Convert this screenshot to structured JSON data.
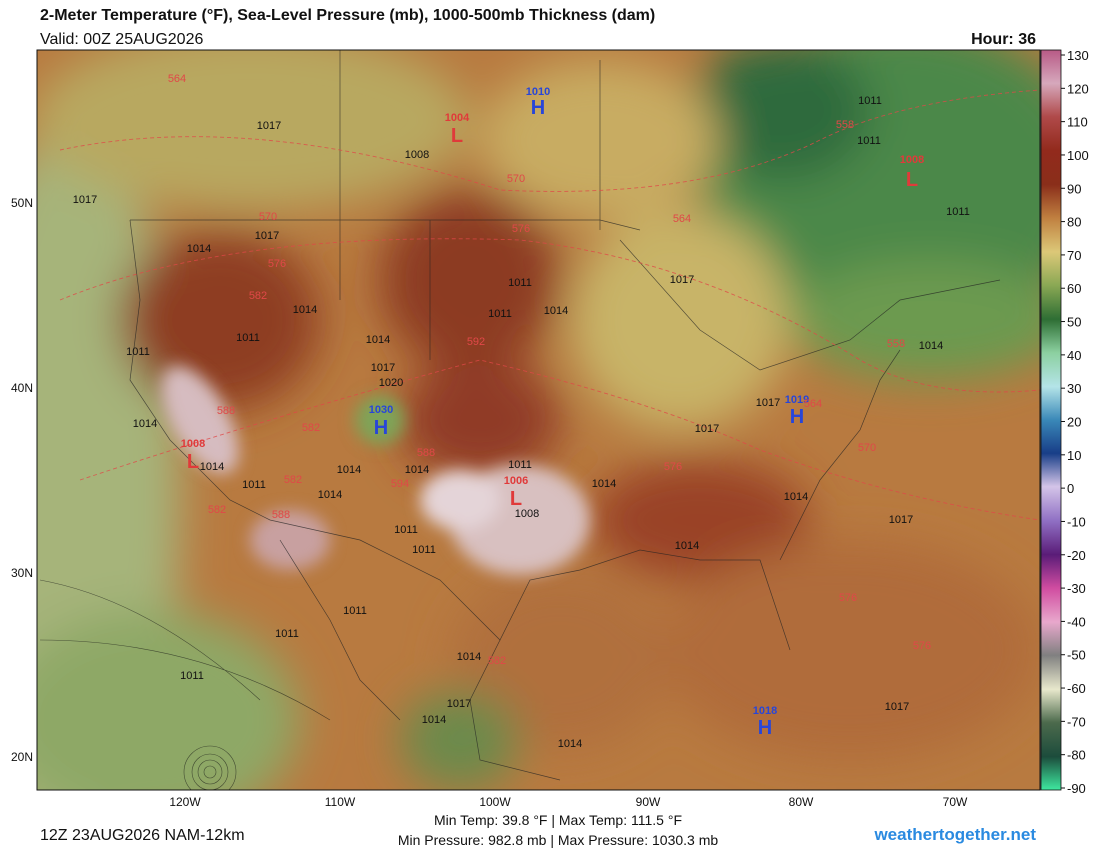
{
  "header": {
    "title": "2-Meter Temperature (°F), Sea-Level Pressure (mb), 1000-500mb Thickness (dam)",
    "valid": "Valid: 00Z 25AUG2026",
    "hour": "Hour: 36"
  },
  "colorbar": {
    "ticks": [
      130,
      120,
      110,
      100,
      90,
      80,
      70,
      60,
      50,
      40,
      30,
      20,
      10,
      0,
      -10,
      -20,
      -30,
      -40,
      -50,
      -60,
      -70,
      -80,
      -90
    ]
  },
  "latitude_labels": [
    "50N",
    "40N",
    "30N",
    "20N"
  ],
  "longitude_labels": [
    "120W",
    "110W",
    "100W",
    "90W",
    "80W",
    "70W"
  ],
  "pressure_centers": [
    {
      "symbol": "H",
      "value": 1010
    },
    {
      "symbol": "H",
      "value": 1030
    },
    {
      "symbol": "H",
      "value": 1019
    },
    {
      "symbol": "H",
      "value": 1018
    },
    {
      "symbol": "L",
      "value": 1004
    },
    {
      "symbol": "L",
      "value": 1008
    },
    {
      "symbol": "L",
      "value": 1008
    },
    {
      "symbol": "L",
      "value": 1006
    }
  ],
  "isobar_labels": [
    1017,
    1008,
    1011,
    1011,
    1011,
    1014,
    1017,
    1011,
    1011,
    1014,
    1014,
    1011,
    1011,
    1014,
    1017,
    1017,
    1020,
    1017,
    1017,
    1014,
    1014,
    1011,
    1014,
    1014,
    1014,
    1011,
    1008,
    1014,
    1014,
    1014,
    1017,
    1011,
    1011,
    1014,
    1011,
    1011,
    1011,
    1014,
    1014,
    1017,
    1014,
    1017,
    1017
  ],
  "thickness_labels": [
    564,
    570,
    558,
    576,
    564,
    570,
    576,
    582,
    592,
    558,
    564,
    570,
    576,
    588,
    582,
    588,
    594,
    582,
    588,
    582,
    576,
    576,
    582
  ],
  "footer": {
    "run": "12Z 23AUG2026 NAM-12km",
    "temperature_range": "Min Temp:  39.8 °F | Max Temp: 111.5 °F",
    "pressure_range": "Min Pressure: 982.8 mb | Max Pressure: 1030.3 mb",
    "site": "weathertogether.net"
  }
}
